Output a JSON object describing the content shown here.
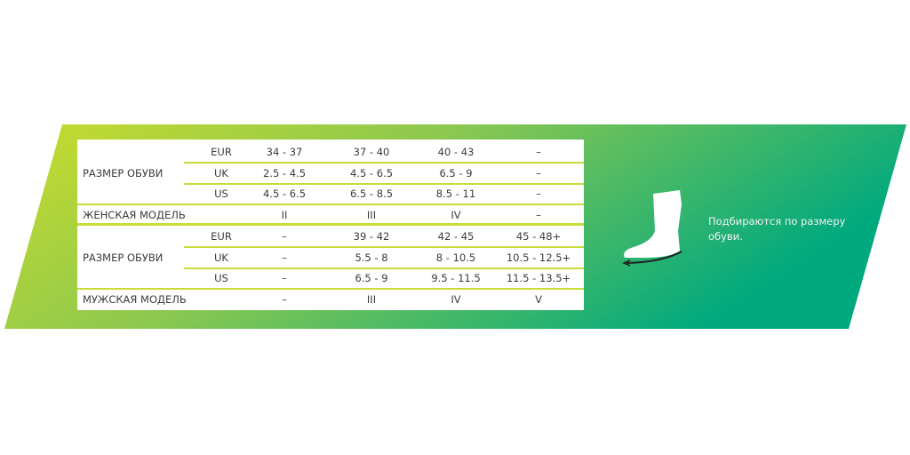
{
  "colors": {
    "gradient_start": "#c9dc2c",
    "gradient_end": "#00a97e",
    "separator": "#c9dc3a"
  },
  "women": {
    "size_label": "РАЗМЕР ОБУВИ",
    "rows": [
      {
        "unit": "EUR",
        "values": [
          "34 - 37",
          "37 - 40",
          "40 - 43",
          "–"
        ]
      },
      {
        "unit": "UK",
        "values": [
          "2.5 - 4.5",
          "4.5 - 6.5",
          "6.5 - 9",
          "–"
        ]
      },
      {
        "unit": "US",
        "values": [
          "4.5 - 6.5",
          "6.5 - 8.5",
          "8.5 - 11",
          "–"
        ]
      }
    ],
    "model_label": "ЖЕНСКАЯ МОДЕЛЬ",
    "models": [
      "II",
      "III",
      "IV",
      "–"
    ]
  },
  "men": {
    "size_label": "РАЗМЕР ОБУВИ",
    "rows": [
      {
        "unit": "EUR",
        "values": [
          "–",
          "39 - 42",
          "42 - 45",
          "45 - 48+"
        ]
      },
      {
        "unit": "UK",
        "values": [
          "–",
          "5.5 - 8",
          "8 - 10.5",
          "10.5 - 12.5+"
        ]
      },
      {
        "unit": "US",
        "values": [
          "–",
          "6.5 - 9",
          "9.5 - 11.5",
          "11.5 - 13.5+"
        ]
      }
    ],
    "model_label": "МУЖСКАЯ МОДЕЛЬ",
    "models": [
      "–",
      "III",
      "IV",
      "V"
    ]
  },
  "note": "Подбираются по размеру обуви.",
  "icon": "foot-length-icon"
}
